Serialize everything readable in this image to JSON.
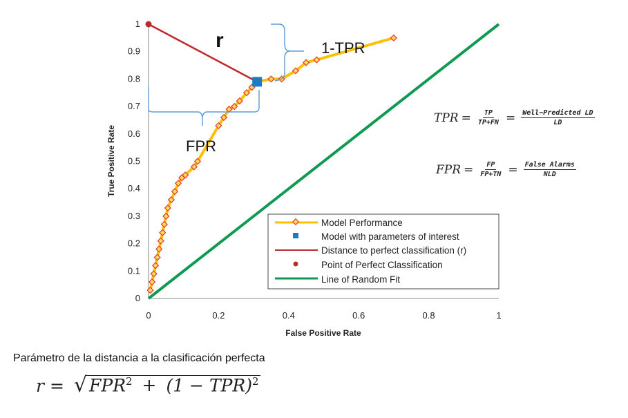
{
  "chart_data": {
    "type": "scatter",
    "xlabel": "False Positive Rate",
    "ylabel": "True Positive Rate",
    "xlim": [
      0,
      1
    ],
    "ylim": [
      0,
      1
    ],
    "x_ticks": [
      "0",
      "0.2",
      "0.4",
      "0.6",
      "0.8",
      "1"
    ],
    "y_ticks": [
      "0",
      "0.1",
      "0.2",
      "0.3",
      "0.4",
      "0.5",
      "0.6",
      "0.7",
      "0.8",
      "0.9",
      "1"
    ],
    "grid": false,
    "legend_position": "bottom-right",
    "series": [
      {
        "name": "Model Performance",
        "kind": "line-markers",
        "color": "#FFC000",
        "marker_color": "#E8412C",
        "x": [
          0.005,
          0.01,
          0.015,
          0.02,
          0.025,
          0.03,
          0.035,
          0.04,
          0.045,
          0.05,
          0.055,
          0.065,
          0.075,
          0.085,
          0.095,
          0.105,
          0.13,
          0.14,
          0.2,
          0.215,
          0.23,
          0.245,
          0.26,
          0.28,
          0.295,
          0.31,
          0.35,
          0.38,
          0.42,
          0.45,
          0.48,
          0.7
        ],
        "y": [
          0.03,
          0.06,
          0.09,
          0.12,
          0.15,
          0.18,
          0.21,
          0.24,
          0.27,
          0.3,
          0.33,
          0.36,
          0.39,
          0.42,
          0.44,
          0.45,
          0.48,
          0.5,
          0.63,
          0.66,
          0.69,
          0.7,
          0.72,
          0.75,
          0.77,
          0.79,
          0.8,
          0.8,
          0.83,
          0.86,
          0.87,
          0.95
        ]
      },
      {
        "name": "Model with parameters of interest",
        "kind": "point-square",
        "color": "#1F7BC1",
        "x": [
          0.31
        ],
        "y": [
          0.79
        ]
      },
      {
        "name": "Distance to perfect classification (r)",
        "kind": "segment",
        "color": "#C0282D",
        "x": [
          0,
          0.31
        ],
        "y": [
          1,
          0.79
        ]
      },
      {
        "name": "Point of Perfect Classification",
        "kind": "point-circle",
        "color": "#C0282D",
        "x": [
          0
        ],
        "y": [
          1
        ]
      },
      {
        "name": "Line of Random Fit",
        "kind": "line",
        "color": "#0F9A52",
        "x": [
          0,
          1
        ],
        "y": [
          0,
          1
        ]
      }
    ],
    "annotations": {
      "r_label": "r",
      "one_minus_tpr_label": "1-TPR",
      "fpr_label": "FPR"
    }
  },
  "equations": {
    "tpr": {
      "lhs": "TPR",
      "num1": "TP",
      "den1": "TP+FN",
      "num2": "Well−Predicted LD",
      "den2": "LD"
    },
    "fpr": {
      "lhs": "FPR",
      "num1": "FP",
      "den1": "FP+TN",
      "num2": "False Alarms",
      "den2": "NLD"
    }
  },
  "caption": "Parámetro de la distancia a la clasificación perfecta",
  "formula": {
    "lhs": "r",
    "eq": "=",
    "radicand_a": "FPR",
    "exp_a": "2",
    "plus": "+",
    "radicand_b": "(1 − TPR)",
    "exp_b": "2"
  }
}
